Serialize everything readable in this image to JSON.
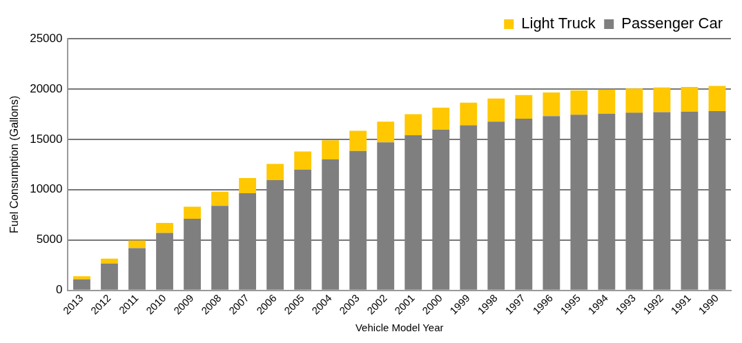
{
  "chart_data": {
    "type": "bar",
    "stacked": true,
    "xlabel": "Vehicle Model Year",
    "ylabel": "Fuel Consumption (Gallons)",
    "categories": [
      "2013",
      "2012",
      "2011",
      "2010",
      "2009",
      "2008",
      "2007",
      "2006",
      "2005",
      "2004",
      "2003",
      "2002",
      "2001",
      "2000",
      "1999",
      "1998",
      "1997",
      "1996",
      "1995",
      "1994",
      "1993",
      "1992",
      "1991",
      "1990"
    ],
    "series": [
      {
        "name": "Passenger Car",
        "color": "#7f7f7f",
        "values": [
          1100,
          2650,
          4200,
          5700,
          7100,
          8400,
          9650,
          10950,
          12000,
          13000,
          13850,
          14700,
          15400,
          15950,
          16400,
          16750,
          17050,
          17300,
          17450,
          17550,
          17650,
          17700,
          17750,
          17800
        ]
      },
      {
        "name": "Light Truck",
        "color": "#ffc800",
        "values": [
          300,
          500,
          750,
          1000,
          1200,
          1400,
          1500,
          1600,
          1800,
          1900,
          2000,
          2050,
          2100,
          2200,
          2250,
          2300,
          2350,
          2350,
          2400,
          2400,
          2400,
          2450,
          2450,
          2500
        ]
      }
    ],
    "ylim": [
      0,
      25000
    ],
    "yticks": [
      0,
      5000,
      10000,
      15000,
      20000,
      25000
    ],
    "grid": "y",
    "legend": "top right"
  }
}
